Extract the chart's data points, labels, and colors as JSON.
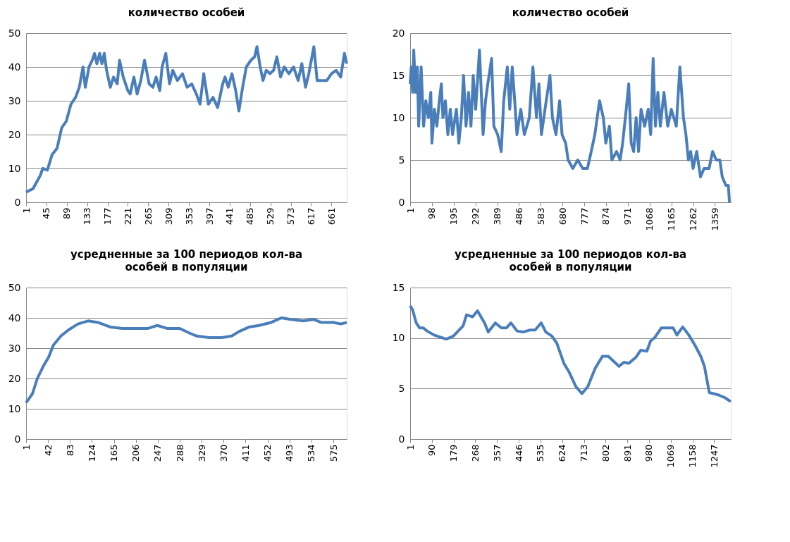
{
  "chart_data": [
    {
      "type": "line",
      "title": "количество особей",
      "grid": "y",
      "xlim": [
        1,
        694
      ],
      "ylim": [
        0,
        50
      ],
      "xticks": [
        1,
        45,
        89,
        133,
        177,
        221,
        265,
        309,
        353,
        397,
        441,
        485,
        529,
        573,
        617,
        661
      ],
      "yticks": [
        0,
        10,
        20,
        30,
        40,
        50
      ],
      "series": [
        {
          "color": "#4a7ebb",
          "x": [
            1,
            16,
            32,
            37,
            47,
            57,
            68,
            78,
            88,
            98,
            108,
            116,
            124,
            129,
            137,
            144,
            149,
            154,
            160,
            165,
            170,
            175,
            183,
            190,
            198,
            203,
            211,
            221,
            226,
            234,
            241,
            249,
            257,
            267,
            275,
            282,
            290,
            295,
            303,
            311,
            318,
            328,
            339,
            349,
            359,
            369,
            377,
            385,
            395,
            405,
            415,
            426,
            431,
            438,
            446,
            454,
            461,
            469,
            477,
            487,
            495,
            500,
            507,
            513,
            520,
            528,
            536,
            543,
            551,
            559,
            569,
            579,
            589,
            597,
            605,
            612,
            623,
            630,
            641,
            651,
            661,
            671,
            681,
            689,
            694
          ],
          "values": [
            3,
            4,
            8,
            10,
            9.5,
            14,
            16,
            22,
            24,
            29,
            31,
            34,
            40,
            34,
            40,
            42,
            44,
            41,
            44,
            41,
            44,
            39,
            34,
            37,
            35,
            42,
            37,
            33,
            32,
            37,
            32,
            36,
            42,
            35,
            34,
            37,
            33,
            40,
            44,
            35,
            39,
            36,
            38,
            34,
            35,
            32,
            29,
            38,
            29,
            31,
            28,
            35,
            37,
            34,
            38,
            33,
            27,
            34,
            40,
            42,
            43,
            46,
            40,
            36,
            39,
            38,
            39,
            43,
            37,
            40,
            38,
            40,
            36,
            41,
            34,
            38,
            46,
            36,
            36,
            36,
            38,
            39,
            37,
            44,
            41
          ]
        }
      ]
    },
    {
      "type": "line",
      "title": "количество особей",
      "grid": "y",
      "xlim": [
        1,
        1430
      ],
      "ylim": [
        0,
        20
      ],
      "xticks": [
        1,
        98,
        195,
        292,
        389,
        486,
        583,
        680,
        777,
        874,
        971,
        1068,
        1165,
        1262,
        1359
      ],
      "yticks": [
        0,
        5,
        10,
        15,
        20
      ],
      "series": [
        {
          "color": "#4a7ebb",
          "x": [
            1,
            6,
            12,
            17,
            25,
            33,
            39,
            50,
            61,
            71,
            82,
            93,
            98,
            109,
            120,
            131,
            140,
            147,
            158,
            169,
            180,
            190,
            207,
            218,
            229,
            239,
            250,
            261,
            272,
            282,
            293,
            310,
            326,
            337,
            347,
            364,
            374,
            391,
            407,
            418,
            434,
            445,
            456,
            467,
            477,
            494,
            510,
            532,
            548,
            564,
            575,
            586,
            602,
            624,
            635,
            651,
            667,
            678,
            694,
            705,
            726,
            748,
            770,
            791,
            808,
            824,
            845,
            862,
            873,
            889,
            900,
            921,
            937,
            948,
            964,
            975,
            986,
            997,
            1008,
            1019,
            1030,
            1046,
            1062,
            1073,
            1084,
            1094,
            1105,
            1116,
            1132,
            1149,
            1165,
            1187,
            1203,
            1219,
            1230,
            1241,
            1251,
            1262,
            1278,
            1295,
            1311,
            1333,
            1349,
            1365,
            1381,
            1392,
            1408,
            1419,
            1424
          ],
          "values": [
            14,
            16,
            13,
            18,
            13,
            16,
            9,
            16,
            9,
            12,
            10,
            13,
            7,
            11,
            9,
            12,
            14,
            10,
            12,
            8,
            11,
            8,
            11,
            7,
            10,
            15,
            9,
            13,
            9,
            15,
            11,
            18,
            8,
            12,
            14,
            17,
            9,
            8,
            6,
            12,
            16,
            11,
            16,
            12,
            8,
            11,
            8,
            10,
            16,
            10,
            14,
            8,
            11,
            15,
            10,
            8,
            12,
            8,
            7,
            5,
            4,
            5,
            4,
            4,
            6,
            8,
            12,
            10,
            7,
            9,
            5,
            6,
            5,
            7,
            11,
            14,
            7,
            6,
            10,
            6,
            11,
            9,
            11,
            8,
            17,
            9,
            13,
            9,
            13,
            9,
            11,
            9,
            16,
            10,
            8,
            5,
            6,
            4,
            6,
            3,
            4,
            4,
            6,
            5,
            5,
            3,
            2,
            2,
            0
          ]
        }
      ]
    },
    {
      "type": "line",
      "title": "усредненные за 100 периодов кол-ва",
      "subtitle": "особей в популяции",
      "grid": "y",
      "xlim": [
        1,
        600
      ],
      "ylim": [
        0,
        50
      ],
      "xticks": [
        1,
        42,
        83,
        124,
        165,
        206,
        247,
        288,
        329,
        370,
        411,
        452,
        493,
        534,
        575
      ],
      "yticks": [
        0,
        10,
        20,
        30,
        40,
        50
      ],
      "series": [
        {
          "color": "#4a7ebb",
          "x": [
            1,
            13,
            22,
            33,
            43,
            52,
            66,
            80,
            98,
            117,
            135,
            158,
            181,
            205,
            228,
            246,
            265,
            288,
            306,
            320,
            343,
            367,
            385,
            399,
            418,
            436,
            459,
            478,
            496,
            519,
            538,
            552,
            575,
            589,
            600
          ],
          "values": [
            12,
            15,
            20,
            24,
            27,
            31,
            34,
            36,
            38,
            39,
            38.5,
            37,
            36.5,
            36.5,
            36.5,
            37.5,
            36.5,
            36.5,
            35,
            34,
            33.5,
            33.5,
            34,
            35.5,
            37,
            37.5,
            38.5,
            40,
            39.5,
            39,
            39.5,
            38.5,
            38.5,
            38,
            38.5
          ]
        }
      ]
    },
    {
      "type": "line",
      "title": "усредненные за 100 периодов кол-ва",
      "subtitle": "особей в популяции",
      "grid": "y",
      "xlim": [
        1,
        1315
      ],
      "ylim": [
        0,
        15
      ],
      "xticks": [
        1,
        90,
        179,
        268,
        357,
        446,
        535,
        624,
        713,
        802,
        891,
        980,
        1069,
        1158,
        1247
      ],
      "yticks": [
        0,
        5,
        10,
        15
      ],
      "series": [
        {
          "color": "#4a7ebb",
          "x": [
            1,
            11,
            26,
            40,
            55,
            70,
            99,
            149,
            178,
            218,
            232,
            257,
            277,
            306,
            321,
            350,
            375,
            395,
            414,
            439,
            464,
            493,
            513,
            538,
            557,
            582,
            602,
            631,
            651,
            680,
            705,
            729,
            759,
            789,
            813,
            857,
            877,
            897,
            926,
            946,
            971,
            986,
            1005,
            1030,
            1064,
            1079,
            1094,
            1118,
            1143,
            1168,
            1192,
            1207,
            1227,
            1261,
            1291,
            1315
          ],
          "values": [
            13.2,
            12.8,
            11.5,
            11,
            11,
            10.7,
            10.3,
            9.9,
            10.2,
            11.2,
            12.3,
            12.1,
            12.7,
            11.5,
            10.6,
            11.5,
            11,
            11,
            11.5,
            10.7,
            10.6,
            10.8,
            10.8,
            11.5,
            10.6,
            10.2,
            9.5,
            7.5,
            6.7,
            5.2,
            4.5,
            5.2,
            7,
            8.2,
            8.2,
            7.2,
            7.6,
            7.5,
            8.1,
            8.8,
            8.7,
            9.7,
            10.1,
            11,
            11,
            11,
            10.3,
            11.1,
            10.3,
            9.3,
            8.2,
            7.2,
            4.6,
            4.4,
            4.1,
            3.7
          ]
        }
      ]
    }
  ]
}
